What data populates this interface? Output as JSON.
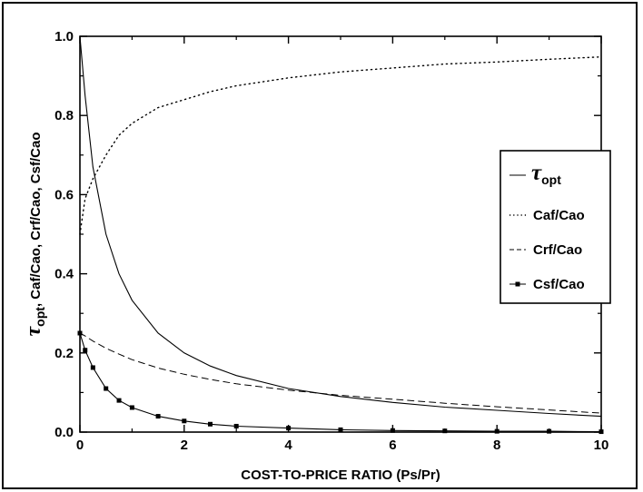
{
  "chart_data": {
    "type": "line",
    "title": "",
    "xlabel": "COST-TO-PRICE RATIO (Ps/Pr)",
    "ylabel": {
      "symbol": "τ",
      "subscript": "opt",
      "rest": ", Caf/Cao, Crf/Cao, Csf/Cao"
    },
    "xlim": [
      0,
      10
    ],
    "ylim": [
      0,
      1.0
    ],
    "xticks": [
      "0",
      "2",
      "4",
      "6",
      "8",
      "10"
    ],
    "yticks": [
      "0.0",
      "0.2",
      "0.4",
      "0.6",
      "0.8",
      "1.0"
    ],
    "grid": false,
    "legend_position": "center-right",
    "x": [
      0,
      0.1,
      0.25,
      0.5,
      0.75,
      1.0,
      1.5,
      2.0,
      2.5,
      3.0,
      4.0,
      5.0,
      6.0,
      7.0,
      8.0,
      9.0,
      10.0
    ],
    "series": [
      {
        "name": "τopt",
        "legend_symbol": "τ",
        "legend_subscript": "opt",
        "style": "solid",
        "values": [
          1.0,
          0.85,
          0.67,
          0.5,
          0.4,
          0.333,
          0.25,
          0.2,
          0.167,
          0.143,
          0.11,
          0.09,
          0.075,
          0.063,
          0.055,
          0.047,
          0.04
        ]
      },
      {
        "name": "Caf/Cao",
        "style": "dotted",
        "values": [
          0.5,
          0.59,
          0.64,
          0.7,
          0.75,
          0.78,
          0.82,
          0.84,
          0.86,
          0.875,
          0.895,
          0.91,
          0.92,
          0.93,
          0.935,
          0.942,
          0.948
        ]
      },
      {
        "name": "Crf/Cao",
        "style": "dashed",
        "values": [
          0.25,
          0.243,
          0.23,
          0.212,
          0.197,
          0.183,
          0.162,
          0.146,
          0.133,
          0.122,
          0.106,
          0.093,
          0.083,
          0.073,
          0.064,
          0.056,
          0.048
        ]
      },
      {
        "name": "Csf/Cao",
        "style": "solid-markers",
        "values": [
          0.25,
          0.207,
          0.163,
          0.11,
          0.08,
          0.062,
          0.04,
          0.028,
          0.02,
          0.015,
          0.01,
          0.006,
          0.004,
          0.003,
          0.002,
          0.002,
          0.001
        ]
      }
    ]
  }
}
